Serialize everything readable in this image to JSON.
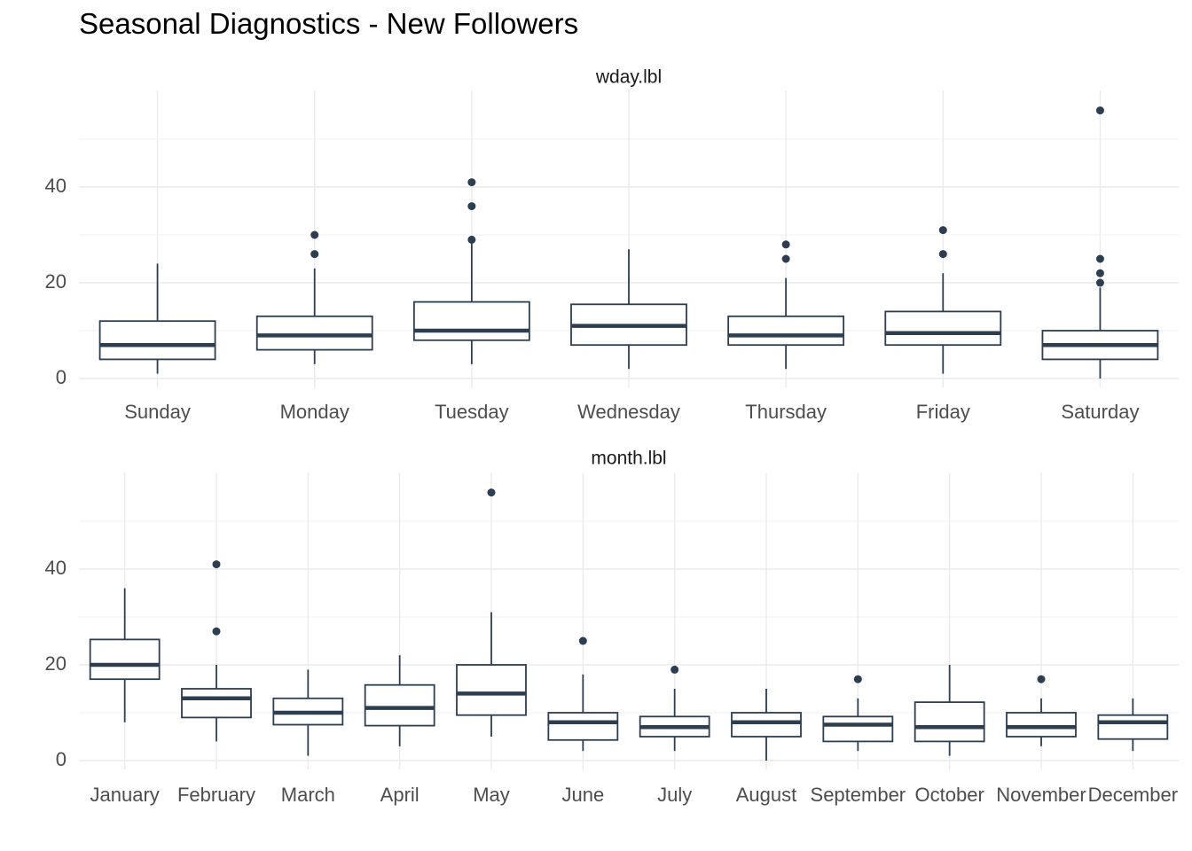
{
  "title": "Seasonal Diagnostics - New Followers",
  "colors": {
    "box": "#2c3e50",
    "grid": "#ebebeb",
    "text": "#4d4d4d",
    "background": "#ffffff"
  },
  "chart_data": [
    {
      "type": "boxplot",
      "strip_label": "wday.lbl",
      "ylim": [
        0,
        58
      ],
      "yticks": [
        0,
        20,
        40
      ],
      "grid": true,
      "categories": [
        "Sunday",
        "Monday",
        "Tuesday",
        "Wednesday",
        "Thursday",
        "Friday",
        "Saturday"
      ],
      "boxes": [
        {
          "category": "Sunday",
          "min": 1,
          "q1": 4,
          "median": 7,
          "q3": 12,
          "max": 24,
          "outliers": []
        },
        {
          "category": "Monday",
          "min": 3,
          "q1": 6,
          "median": 9,
          "q3": 13,
          "max": 23,
          "outliers": [
            26,
            30
          ]
        },
        {
          "category": "Tuesday",
          "min": 3,
          "q1": 8,
          "median": 10,
          "q3": 16,
          "max": 29,
          "outliers": [
            29,
            36,
            41
          ]
        },
        {
          "category": "Wednesday",
          "min": 2,
          "q1": 7,
          "median": 11,
          "q3": 15.5,
          "max": 27,
          "outliers": []
        },
        {
          "category": "Thursday",
          "min": 2,
          "q1": 7,
          "median": 9,
          "q3": 13,
          "max": 21,
          "outliers": [
            25,
            28
          ]
        },
        {
          "category": "Friday",
          "min": 1,
          "q1": 7,
          "median": 9.5,
          "q3": 14,
          "max": 22,
          "outliers": [
            26,
            31
          ]
        },
        {
          "category": "Saturday",
          "min": 0,
          "q1": 4,
          "median": 7,
          "q3": 10,
          "max": 19,
          "outliers": [
            20,
            22,
            25,
            56
          ]
        }
      ]
    },
    {
      "type": "boxplot",
      "strip_label": "month.lbl",
      "ylim": [
        0,
        58
      ],
      "yticks": [
        0,
        20,
        40
      ],
      "grid": true,
      "categories": [
        "January",
        "February",
        "March",
        "April",
        "May",
        "June",
        "July",
        "August",
        "September",
        "October",
        "November",
        "December"
      ],
      "boxes": [
        {
          "category": "January",
          "min": 8,
          "q1": 17,
          "median": 20,
          "q3": 25.3,
          "max": 36,
          "outliers": []
        },
        {
          "category": "February",
          "min": 4,
          "q1": 9,
          "median": 13,
          "q3": 15,
          "max": 20,
          "outliers": [
            27,
            41
          ]
        },
        {
          "category": "March",
          "min": 1,
          "q1": 7.5,
          "median": 10,
          "q3": 13,
          "max": 19,
          "outliers": []
        },
        {
          "category": "April",
          "min": 3,
          "q1": 7.3,
          "median": 11,
          "q3": 15.8,
          "max": 22,
          "outliers": []
        },
        {
          "category": "May",
          "min": 5,
          "q1": 9.5,
          "median": 14,
          "q3": 20,
          "max": 31,
          "outliers": [
            56
          ]
        },
        {
          "category": "June",
          "min": 2,
          "q1": 4.3,
          "median": 8,
          "q3": 10,
          "max": 18,
          "outliers": [
            25
          ]
        },
        {
          "category": "July",
          "min": 2,
          "q1": 5,
          "median": 7,
          "q3": 9.2,
          "max": 15,
          "outliers": [
            19
          ]
        },
        {
          "category": "August",
          "min": 0,
          "q1": 5,
          "median": 8,
          "q3": 10,
          "max": 15,
          "outliers": []
        },
        {
          "category": "September",
          "min": 2,
          "q1": 4,
          "median": 7.5,
          "q3": 9.2,
          "max": 13,
          "outliers": [
            17
          ]
        },
        {
          "category": "October",
          "min": 1,
          "q1": 4,
          "median": 7,
          "q3": 12.2,
          "max": 20,
          "outliers": []
        },
        {
          "category": "November",
          "min": 3,
          "q1": 5,
          "median": 7,
          "q3": 10,
          "max": 13,
          "outliers": [
            17
          ]
        },
        {
          "category": "December",
          "min": 2,
          "q1": 4.5,
          "median": 8,
          "q3": 9.5,
          "max": 13,
          "outliers": []
        }
      ]
    }
  ]
}
